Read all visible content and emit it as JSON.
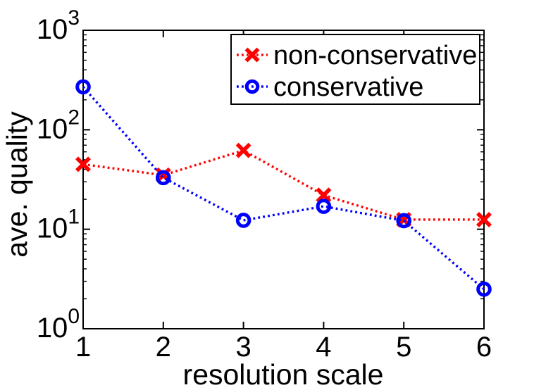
{
  "figure": {
    "background_color": "#ffffff",
    "axis_color": "#000000"
  },
  "chart_data": {
    "type": "line",
    "title": "",
    "xlabel": "resolution scale",
    "ylabel": "ave. quality",
    "x": [
      1,
      2,
      3,
      4,
      5,
      6
    ],
    "xlim": [
      1,
      6
    ],
    "x_tick_labels": [
      "1",
      "2",
      "3",
      "4",
      "5",
      "6"
    ],
    "yscale": "log10",
    "ylim": [
      1,
      1000
    ],
    "ylim_exponents": [
      0,
      3
    ],
    "y_tick_base": "10",
    "y_tick_exponents": [
      "0",
      "1",
      "2",
      "3"
    ],
    "grid": false,
    "legend": {
      "position": "top-right-inside",
      "border": true,
      "entries": [
        "non-conservative",
        "conservative"
      ]
    },
    "series": [
      {
        "name": "non-conservative",
        "color": "#ff0000",
        "marker": "x",
        "line_style": "dotted",
        "values": [
          45,
          35,
          62,
          22,
          12.5,
          12.5
        ]
      },
      {
        "name": "conservative",
        "color": "#0000ff",
        "marker": "o",
        "line_style": "dotted",
        "values": [
          270,
          33,
          12.3,
          17,
          12.2,
          2.5
        ]
      }
    ]
  }
}
